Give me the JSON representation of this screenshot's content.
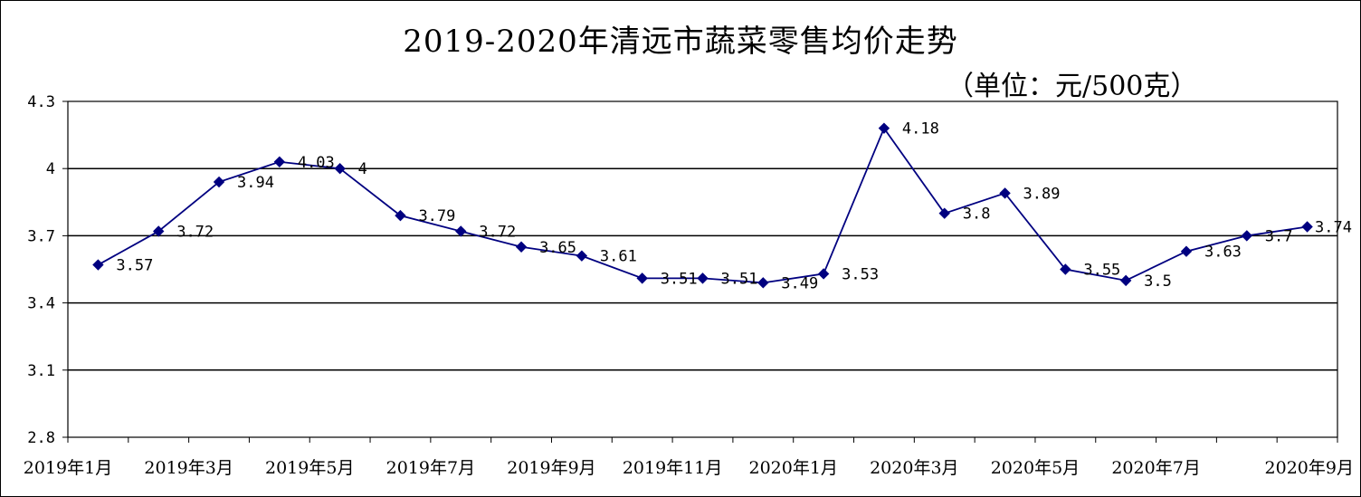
{
  "chart_data": {
    "type": "line",
    "title": "2019-2020年清远市蔬菜零售均价走势",
    "unit_note": "（单位：元/500克）",
    "xlabel": "",
    "ylabel": "",
    "ylim": [
      2.8,
      4.3
    ],
    "yticks": [
      2.8,
      3.1,
      3.4,
      3.7,
      4,
      4.3
    ],
    "ytick_labels": [
      "2.8",
      "3.1",
      "3.4",
      "3.7",
      "4",
      "4.3"
    ],
    "grid": "horizontal",
    "legend": "none",
    "line_color": "#000080",
    "x_tick_labels": [
      "2019年1月",
      "2019年3月",
      "2019年5月",
      "2019年7月",
      "2019年9月",
      "2019年11月",
      "2020年1月",
      "2020年3月",
      "2020年5月",
      "2020年7月",
      "2020年9月"
    ],
    "series": [
      {
        "values": [
          3.57,
          3.72,
          3.94,
          4.03,
          4,
          3.79,
          3.72,
          3.65,
          3.61,
          3.51,
          3.51,
          3.49,
          3.53,
          4.18,
          3.8,
          3.89,
          3.55,
          3.5,
          3.63,
          3.7,
          3.74
        ],
        "labels": [
          "3.57",
          "3.72",
          "3.94",
          "4.03",
          "4",
          "3.79",
          "3.72",
          "3.65",
          "3.61",
          "3.51",
          "3.51",
          "3.49",
          "3.53",
          "4.18",
          "3.8",
          "3.89",
          "3.55",
          "3.5",
          "3.63",
          "3.7",
          "3.74"
        ]
      }
    ]
  }
}
